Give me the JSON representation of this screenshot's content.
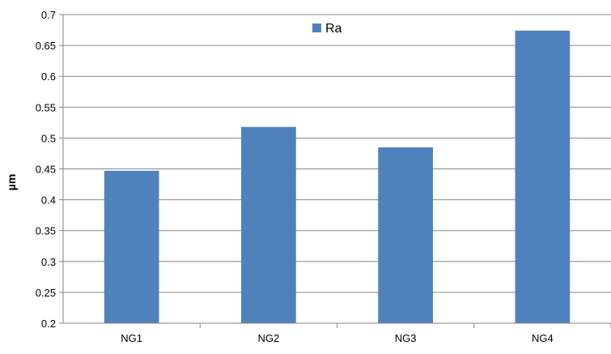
{
  "chart_data": {
    "type": "bar",
    "categories": [
      "NG1",
      "NG2",
      "NG3",
      "NG4"
    ],
    "series": [
      {
        "name": "Ra",
        "values": [
          0.447,
          0.518,
          0.485,
          0.674
        ]
      }
    ],
    "ylabel": "µm",
    "ylim": [
      0.2,
      0.7
    ],
    "yticks": [
      "0.2",
      "0.25",
      "0.3",
      "0.35",
      "0.4",
      "0.45",
      "0.5",
      "0.55",
      "0.6",
      "0.65",
      "0.7"
    ],
    "grid": true,
    "legend_position": "top-center",
    "colors": {
      "bar": "#4f81bd",
      "grid": "#868686",
      "axis": "#868686",
      "text": "#000000"
    }
  }
}
